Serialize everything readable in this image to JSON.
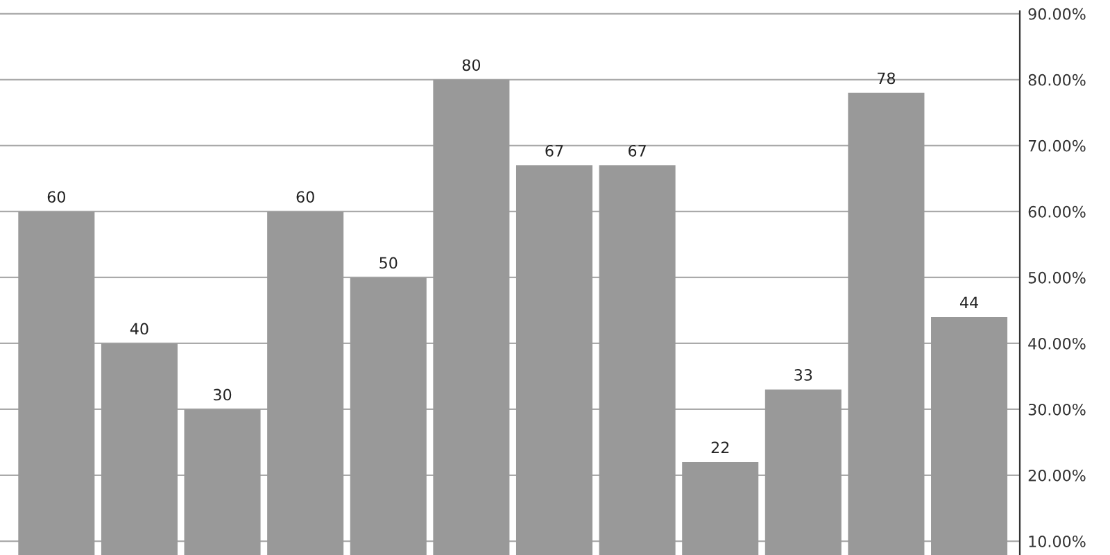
{
  "chart_data": {
    "type": "bar",
    "categories": [
      null,
      null,
      null,
      null,
      null,
      null,
      null,
      null,
      null,
      null,
      null,
      null
    ],
    "values": [
      60,
      40,
      30,
      60,
      50,
      80,
      67,
      67,
      22,
      33,
      78,
      44
    ],
    "color": "#999999",
    "data_labels": true,
    "ylim": [
      7.9,
      90.4
    ],
    "yticks": [
      {
        "value": 10,
        "label": "10.00%"
      },
      {
        "value": 20,
        "label": "20.00%"
      },
      {
        "value": 30,
        "label": "30.00%"
      },
      {
        "value": 40,
        "label": "40.00%"
      },
      {
        "value": 50,
        "label": "50.00%"
      },
      {
        "value": 60,
        "label": "60.00%"
      },
      {
        "value": 70,
        "label": "70.00%"
      },
      {
        "value": 80,
        "label": "80.00%"
      },
      {
        "value": 90,
        "label": "90.00%"
      }
    ],
    "grid": "y",
    "tick_labels": "y"
  }
}
